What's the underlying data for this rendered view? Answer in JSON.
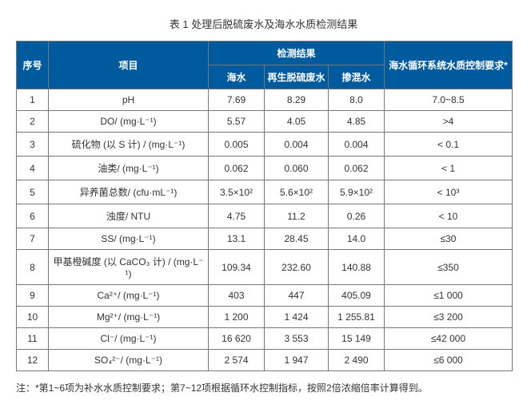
{
  "caption": "表 1 处理后脱硫废水及海水水质检测结果",
  "header": {
    "col_seq": "序号",
    "col_item": "项目",
    "col_results_group": "检测结果",
    "col_seawater": "海水",
    "col_regen": "再生脱硫废水",
    "col_mixed": "掺混水",
    "col_requirement": "海水循环系统水质控制要求*"
  },
  "rows": [
    {
      "n": "1",
      "item": "pH",
      "sea": "7.69",
      "regen": "8.29",
      "mixed": "8.0",
      "req": "7.0~8.5"
    },
    {
      "n": "2",
      "item": "DO/ (mg·L⁻¹)",
      "sea": "5.57",
      "regen": "4.05",
      "mixed": "4.85",
      "req": ">4"
    },
    {
      "n": "3",
      "item": "硫化物 (以 S 计) / (mg·L⁻¹)",
      "sea": "0.005",
      "regen": "0.004",
      "mixed": "0.004",
      "req": "< 0.1"
    },
    {
      "n": "4",
      "item": "油类/ (mg·L⁻¹)",
      "sea": "0.062",
      "regen": "0.060",
      "mixed": "0.062",
      "req": "< 1"
    },
    {
      "n": "5",
      "item": "异养菌总数/ (cfu·mL⁻¹)",
      "sea": "3.5×10²",
      "regen": "5.6×10²",
      "mixed": "5.9×10²",
      "req": "< 10³"
    },
    {
      "n": "6",
      "item": "浊度/ NTU",
      "sea": "4.75",
      "regen": "11.2",
      "mixed": "0.26",
      "req": "< 10"
    },
    {
      "n": "7",
      "item": "SS/ (mg·L⁻¹)",
      "sea": "13.1",
      "regen": "28.45",
      "mixed": "14.0",
      "req": "≤30"
    },
    {
      "n": "8",
      "item": "甲基橙碱度 (以 CaCO₃ 计) / (mg·L⁻¹)",
      "sea": "109.34",
      "regen": "232.60",
      "mixed": "140.88",
      "req": "≤350"
    },
    {
      "n": "9",
      "item": "Ca²⁺/ (mg·L⁻¹)",
      "sea": "403",
      "regen": "447",
      "mixed": "405.09",
      "req": "≤1 000"
    },
    {
      "n": "10",
      "item": "Mg²⁺/ (mg·L⁻¹)",
      "sea": "1 200",
      "regen": "1 424",
      "mixed": "1 255.81",
      "req": "≤3 200"
    },
    {
      "n": "11",
      "item": "Cl⁻/ (mg·L⁻¹)",
      "sea": "16 620",
      "regen": "3 553",
      "mixed": "15 149",
      "req": "≤42 000"
    },
    {
      "n": "12",
      "item": "SO₄²⁻/ (mg·L⁻¹)",
      "sea": "2 574",
      "regen": "1 947",
      "mixed": "2 490",
      "req": "≤6 000"
    }
  ],
  "footnote": "注：*第1~6项为补水水质控制要求；第7~12项根据循环水控制指标，按照2倍浓缩倍率计算得到。",
  "col_widths": {
    "seq": "40px",
    "item": "200px",
    "sea": "70px",
    "regen": "80px",
    "mixed": "70px",
    "req": "160px"
  }
}
